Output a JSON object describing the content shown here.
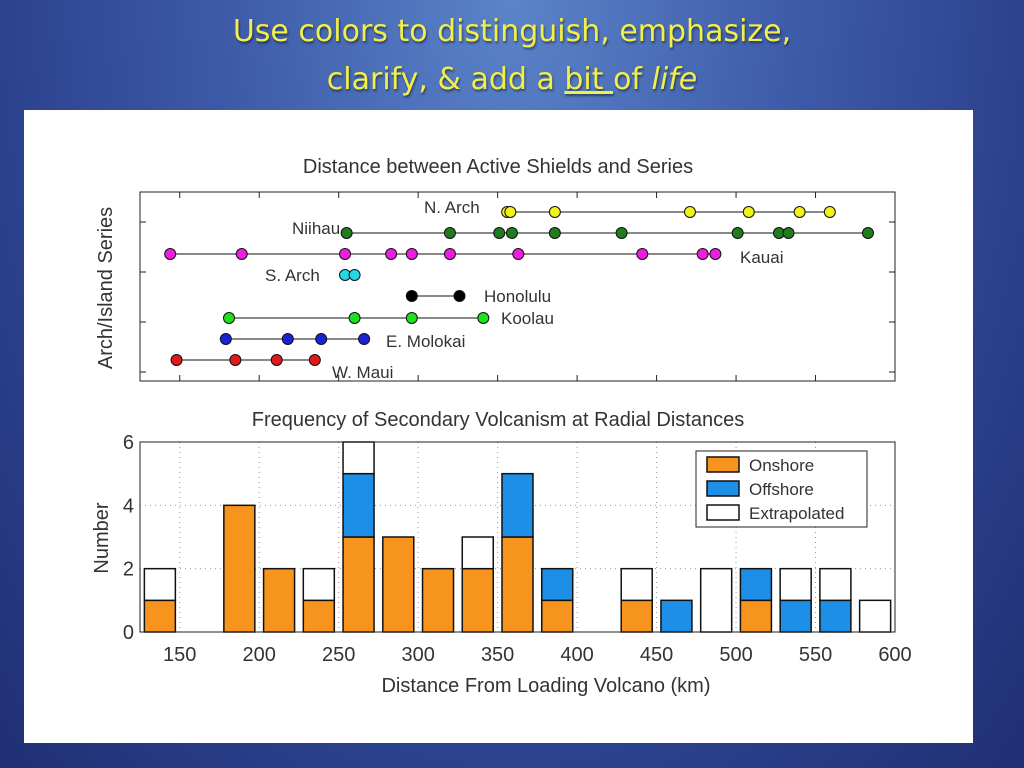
{
  "slide": {
    "title_line1": "Use colors to distinguish, emphasize,",
    "title_line2_a": "clarify, & add a ",
    "title_line2_b": "bit ",
    "title_line2_c": "of ",
    "title_line2_d": "life"
  },
  "colors": {
    "title": "#f2ef4a",
    "onshore": "#f7941d",
    "offshore": "#1e8fe6",
    "extrapolated": "#ffffff"
  },
  "chart_data": [
    {
      "type": "scatter",
      "title": "Distance between Active Shields and Series",
      "xlabel": "",
      "ylabel": "Arch/Island Series",
      "xlim": [
        125,
        600
      ],
      "grid": false,
      "series": [
        {
          "name": "N. Arch",
          "color": "#f2f21a",
          "x": [
            356,
            358,
            386,
            471,
            508,
            540,
            559
          ]
        },
        {
          "name": "Niihau",
          "color": "#1f7d1f",
          "x": [
            255,
            320,
            351,
            359,
            386,
            428,
            501,
            527,
            533,
            583
          ]
        },
        {
          "name": "Kauai",
          "color": "#ee1ee0",
          "x": [
            144,
            189,
            254,
            283,
            296,
            320,
            363,
            441,
            479,
            487
          ]
        },
        {
          "name": "S. Arch",
          "color": "#22d8e6",
          "x": [
            254,
            260
          ]
        },
        {
          "name": "Honolulu",
          "color": "#000000",
          "x": [
            296,
            326
          ]
        },
        {
          "name": "Koolau",
          "color": "#1ee01e",
          "x": [
            181,
            260,
            296,
            341
          ]
        },
        {
          "name": "E. Molokai",
          "color": "#1a22d8",
          "x": [
            179,
            218,
            239,
            266
          ]
        },
        {
          "name": "W. Maui",
          "color": "#e01a1a",
          "x": [
            148,
            185,
            211,
            235
          ]
        }
      ]
    },
    {
      "type": "bar",
      "stacked": true,
      "title": "Frequency of Secondary Volcanism at Radial Distances",
      "xlabel": "Distance From Loading Volcano (km)",
      "ylabel": "Number",
      "xlim": [
        125,
        600
      ],
      "ylim": [
        0,
        6
      ],
      "xticks": [
        150,
        200,
        250,
        300,
        350,
        400,
        450,
        500,
        550,
        600
      ],
      "yticks": [
        0,
        2,
        4,
        6
      ],
      "bin_width": 25,
      "bins": [
        137.5,
        162.5,
        187.5,
        212.5,
        237.5,
        262.5,
        287.5,
        312.5,
        337.5,
        362.5,
        387.5,
        412.5,
        437.5,
        462.5,
        487.5,
        512.5,
        537.5,
        562.5,
        587.5
      ],
      "series": [
        {
          "name": "Onshore",
          "values": [
            1,
            0,
            4,
            2,
            1,
            3,
            3,
            2,
            2,
            3,
            1,
            0,
            1,
            0,
            0,
            1,
            0,
            0,
            0
          ]
        },
        {
          "name": "Offshore",
          "values": [
            0,
            0,
            0,
            0,
            0,
            2,
            0,
            0,
            0,
            2,
            1,
            0,
            0,
            1,
            0,
            1,
            1,
            1,
            0
          ]
        },
        {
          "name": "Extrapolated",
          "values": [
            1,
            0,
            0,
            0,
            1,
            1,
            0,
            0,
            1,
            0,
            0,
            0,
            1,
            0,
            2,
            0,
            1,
            1,
            1
          ]
        }
      ],
      "legend": {
        "placement": "top-right"
      }
    }
  ]
}
